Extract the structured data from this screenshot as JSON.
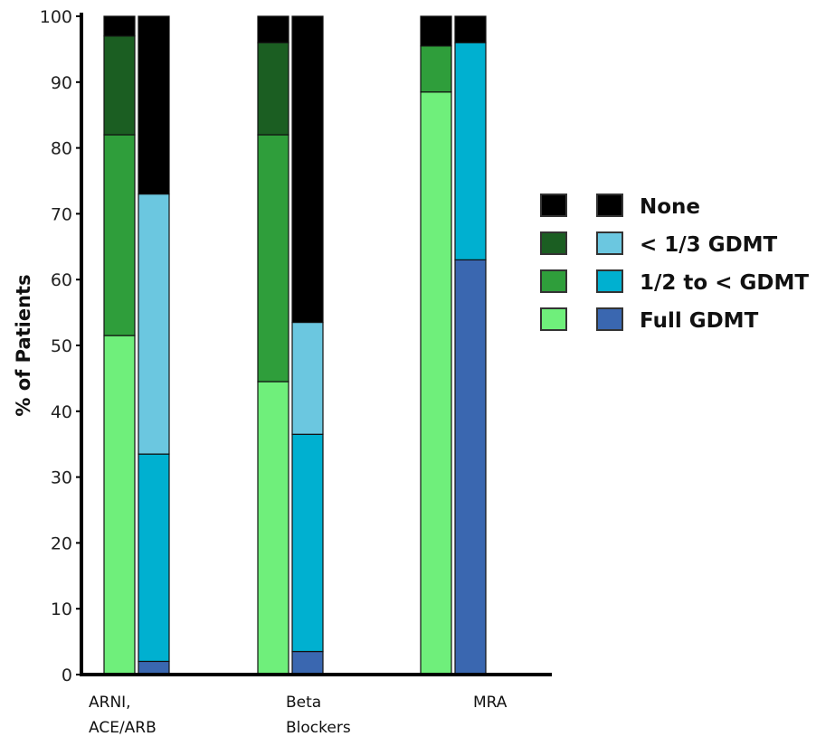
{
  "chart_data": {
    "type": "bar",
    "stacked": true,
    "title": "",
    "xlabel": "",
    "ylabel": "% of Patients",
    "ylim": [
      0,
      100
    ],
    "yticks": [
      0,
      10,
      20,
      30,
      40,
      50,
      60,
      70,
      80,
      90,
      100
    ],
    "grid": false,
    "legend_position": "right",
    "categories": [
      {
        "lines": [
          "ARNI,",
          "ACE/ARB"
        ]
      },
      {
        "lines": [
          "Beta",
          "Blockers"
        ]
      },
      {
        "lines": [
          "MRA"
        ]
      }
    ],
    "levels": [
      "Full GDMT",
      "1/2 to < GDMT",
      "< 1/3 GDMT",
      "None"
    ],
    "groups": [
      {
        "name": "green",
        "colors": [
          "#6fef7b",
          "#2f9e3b",
          "#1b5e22",
          "#000000"
        ],
        "values": [
          [
            51.5,
            30.5,
            15,
            3
          ],
          [
            44.5,
            37.5,
            14,
            4
          ],
          [
            88.5,
            7,
            0,
            4.5
          ]
        ]
      },
      {
        "name": "blue",
        "colors": [
          "#3a67b0",
          "#00b0d0",
          "#6bc7e0",
          "#000000"
        ],
        "values": [
          [
            2,
            31.5,
            39.5,
            27
          ],
          [
            3.5,
            33,
            17,
            46.5
          ],
          [
            63,
            33,
            0,
            4
          ]
        ]
      }
    ],
    "legend": [
      {
        "label": "None",
        "colors": [
          "#000000",
          "#000000"
        ]
      },
      {
        "label": "< 1/3 GDMT",
        "colors": [
          "#1b5e22",
          "#6bc7e0"
        ]
      },
      {
        "label": "1/2 to < GDMT",
        "colors": [
          "#2f9e3b",
          "#00b0d0"
        ]
      },
      {
        "label": "Full GDMT",
        "colors": [
          "#6fef7b",
          "#3a67b0"
        ]
      }
    ]
  }
}
